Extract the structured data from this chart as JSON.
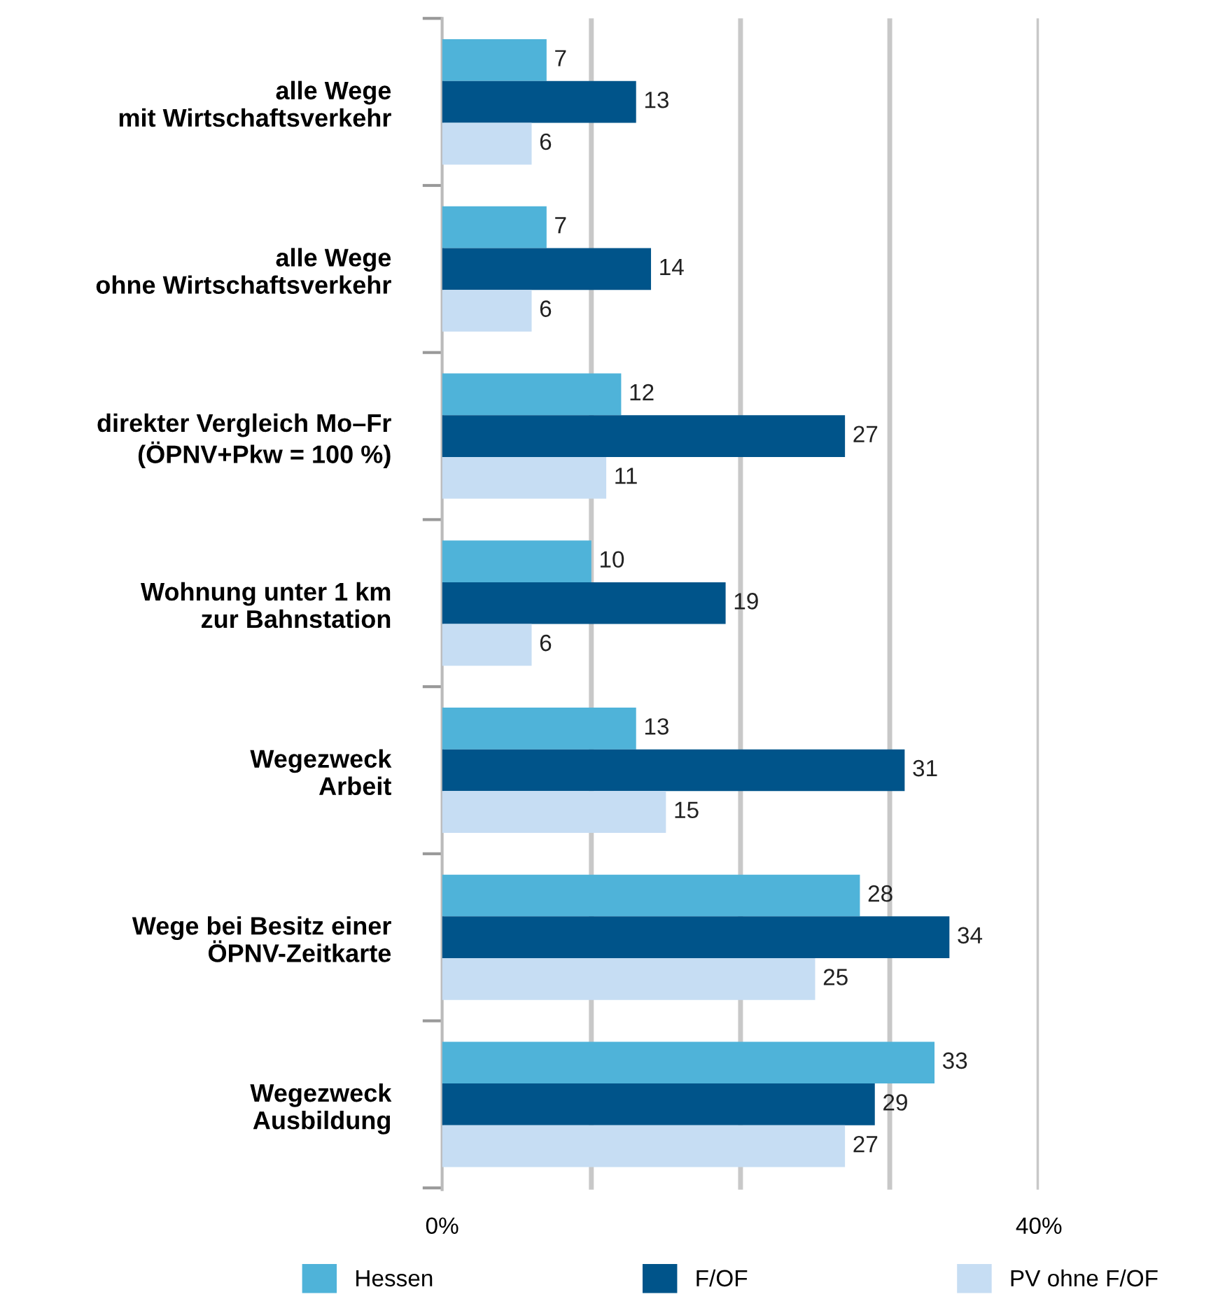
{
  "chart_data": {
    "type": "bar",
    "orientation": "horizontal",
    "categories": [
      "alle Wege\nmit Wirtschaftsverkehr",
      "alle Wege\nohne Wirtschaftsverkehr",
      "direkter Vergleich Mo–Fr\n(ÖPNV+Pkw = 100 %)",
      "Wohnung unter 1 km\nzur Bahnstation",
      "Wegezweck\nArbeit",
      "Wege bei Besitz einer\nÖPNV-Zeitkarte",
      "Wegezweck\nAusbildung"
    ],
    "series": [
      {
        "name": "Hessen",
        "color": "#4fb3d9",
        "values": [
          7,
          7,
          12,
          10,
          13,
          28,
          33
        ]
      },
      {
        "name": "F/OF",
        "color": "#00548a",
        "values": [
          13,
          14,
          27,
          19,
          31,
          34,
          29
        ]
      },
      {
        "name": "PV ohne F/OF",
        "color": "#c6ddf3",
        "values": [
          6,
          6,
          11,
          6,
          15,
          25,
          27
        ]
      }
    ],
    "xlim": [
      0,
      40
    ],
    "xticks": [
      {
        "value": 0,
        "label": "0%"
      },
      {
        "value": 10,
        "label": null
      },
      {
        "value": 20,
        "label": null
      },
      {
        "value": 30,
        "label": null
      },
      {
        "value": 40,
        "label": "40%"
      }
    ],
    "grid": "x",
    "legend": "bottom",
    "data_labels": true
  }
}
